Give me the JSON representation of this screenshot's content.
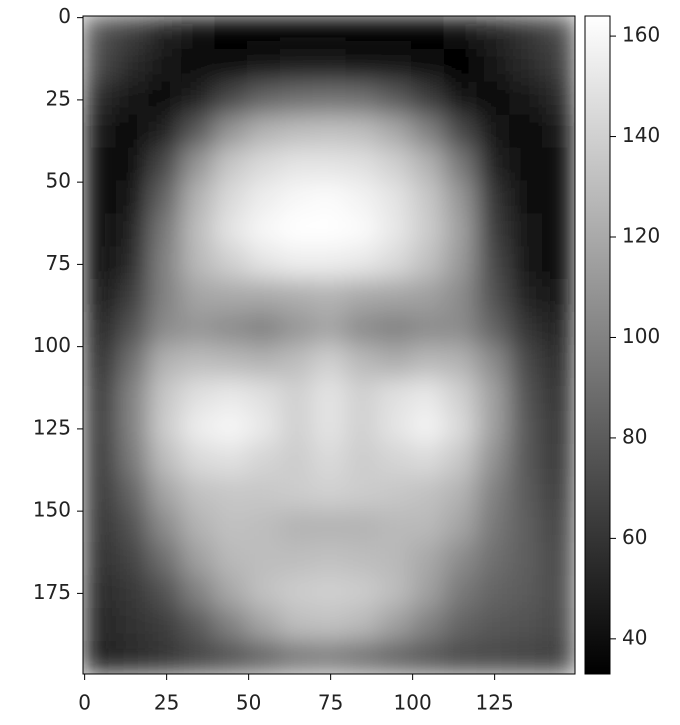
{
  "chart_data": {
    "type": "heatmap",
    "colormap": "gray",
    "xlim": [
      -0.5,
      149.5
    ],
    "ylim": [
      199.5,
      -0.5
    ],
    "xticks": [
      0,
      25,
      50,
      75,
      100,
      125
    ],
    "yticks": [
      0,
      25,
      50,
      75,
      100,
      125,
      150,
      175
    ],
    "vlim": [
      33,
      164
    ],
    "colorbar_ticks": [
      40,
      60,
      80,
      100,
      120,
      140,
      160
    ],
    "z": [
      [
        75,
        65,
        50,
        40,
        36,
        35,
        35,
        35,
        35,
        35,
        36,
        40,
        50,
        60,
        70
      ],
      [
        70,
        55,
        42,
        38,
        40,
        45,
        48,
        48,
        46,
        42,
        38,
        36,
        42,
        55,
        65
      ],
      [
        55,
        42,
        38,
        50,
        70,
        85,
        90,
        92,
        90,
        80,
        65,
        45,
        38,
        45,
        55
      ],
      [
        45,
        38,
        50,
        80,
        110,
        125,
        130,
        132,
        130,
        120,
        100,
        70,
        42,
        40,
        45
      ],
      [
        40,
        40,
        70,
        110,
        135,
        145,
        150,
        150,
        148,
        140,
        125,
        95,
        50,
        38,
        40
      ],
      [
        38,
        45,
        85,
        125,
        145,
        155,
        160,
        162,
        158,
        150,
        135,
        110,
        60,
        40,
        38
      ],
      [
        38,
        50,
        95,
        130,
        150,
        160,
        164,
        164,
        162,
        152,
        138,
        115,
        65,
        42,
        38
      ],
      [
        40,
        55,
        100,
        128,
        140,
        150,
        155,
        155,
        152,
        145,
        132,
        112,
        70,
        45,
        40
      ],
      [
        45,
        65,
        100,
        118,
        120,
        120,
        122,
        125,
        120,
        118,
        115,
        105,
        75,
        50,
        45
      ],
      [
        50,
        75,
        105,
        110,
        105,
        100,
        110,
        118,
        105,
        100,
        105,
        105,
        85,
        60,
        50
      ],
      [
        55,
        90,
        125,
        130,
        128,
        125,
        130,
        140,
        128,
        122,
        128,
        125,
        105,
        70,
        55
      ],
      [
        60,
        100,
        135,
        148,
        152,
        148,
        140,
        150,
        140,
        148,
        152,
        140,
        115,
        75,
        58
      ],
      [
        62,
        100,
        138,
        155,
        160,
        152,
        140,
        150,
        140,
        150,
        158,
        145,
        115,
        78,
        60
      ],
      [
        62,
        95,
        130,
        145,
        148,
        142,
        138,
        145,
        138,
        142,
        145,
        135,
        108,
        78,
        62
      ],
      [
        62,
        85,
        118,
        132,
        135,
        135,
        138,
        140,
        138,
        135,
        132,
        125,
        100,
        80,
        65
      ],
      [
        60,
        75,
        105,
        125,
        132,
        130,
        125,
        125,
        125,
        128,
        128,
        118,
        95,
        82,
        68
      ],
      [
        58,
        68,
        90,
        115,
        128,
        130,
        130,
        132,
        130,
        128,
        120,
        105,
        90,
        82,
        70
      ],
      [
        55,
        62,
        75,
        100,
        120,
        132,
        138,
        140,
        138,
        130,
        115,
        95,
        85,
        80,
        72
      ],
      [
        52,
        58,
        65,
        80,
        100,
        118,
        130,
        132,
        128,
        115,
        100,
        85,
        78,
        75,
        70
      ],
      [
        50,
        55,
        60,
        68,
        75,
        85,
        95,
        98,
        92,
        85,
        78,
        72,
        70,
        68,
        66
      ]
    ]
  }
}
